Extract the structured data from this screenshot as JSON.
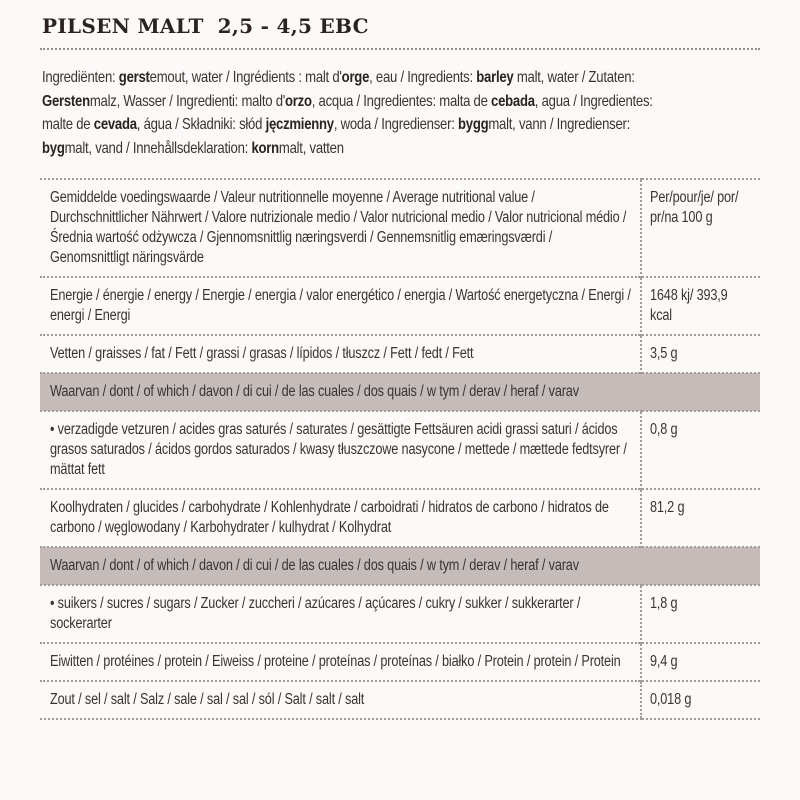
{
  "title": {
    "name": "PILSEN MALT",
    "ebc": "2,5 - 4,5 EBC"
  },
  "ingredients": [
    {
      "t": "Ingrediënten: ",
      "b": false
    },
    {
      "t": "gerst",
      "b": true
    },
    {
      "t": "emout, water / Ingrédients : malt d'",
      "b": false
    },
    {
      "t": "orge",
      "b": true
    },
    {
      "t": ", eau / Ingredients: ",
      "b": false
    },
    {
      "t": "barley",
      "b": true
    },
    {
      "t": " malt, water / Zutaten: ",
      "b": false
    },
    {
      "t": "Gersten",
      "b": true
    },
    {
      "t": "malz, Wasser / Ingredienti: malto d'",
      "b": false
    },
    {
      "t": "orzo",
      "b": true
    },
    {
      "t": ", acqua / Ingredientes: malta de ",
      "b": false
    },
    {
      "t": "cebada",
      "b": true
    },
    {
      "t": ", agua / Ingredientes: malte de ",
      "b": false
    },
    {
      "t": "cevada",
      "b": true
    },
    {
      "t": ", água / Składniki: słód ",
      "b": false
    },
    {
      "t": "jęczmienny",
      "b": true
    },
    {
      "t": ", woda / Ingredienser: ",
      "b": false
    },
    {
      "t": "bygg",
      "b": true
    },
    {
      "t": "malt, vann / Ingredienser: ",
      "b": false
    },
    {
      "t": "byg",
      "b": true
    },
    {
      "t": "malt, vand / Innehållsdeklaration: ",
      "b": false
    },
    {
      "t": "korn",
      "b": true
    },
    {
      "t": "malt, vatten",
      "b": false
    }
  ],
  "table": [
    {
      "label": "Gemiddelde voedingswaarde / Valeur nutritionnelle moyenne / Average nutritional value / Durchschnittlicher Nährwert / Valore nutrizionale medio / Valor nutricional medio / Valor nutricional médio / Średnia wartość odżywcza / Gjennomsnittlig næringsverdi / Gennemsnitlig emæringsværdi / Genomsnittligt näringsvärde",
      "value": "Per/pour/je/ por/ pr/na 100 g",
      "band": false
    },
    {
      "label": "Energie / énergie / energy / Energie / energia / valor energético / energia / Wartość energetyczna / Energi / energi / Energi",
      "value": "1648 kj/ 393,9 kcal",
      "band": false
    },
    {
      "label": "Vetten / graisses / fat / Fett / grassi / grasas / lípidos / tłuszcz / Fett / fedt / Fett",
      "value": "3,5 g",
      "band": false
    },
    {
      "label": "Waarvan / dont / of which / davon / di cui / de las cuales / dos quais / w tym / derav / heraf / varav",
      "value": "",
      "band": true
    },
    {
      "label": "• verzadigde vetzuren / acides gras saturés / saturates / gesättigte Fettsäuren  acidi grassi saturi / ácidos grasos saturados / ácidos gordos saturados / kwasy tłuszczowe nasycone / mettede / mættede fedtsyrer / mättat fett",
      "value": "0,8 g",
      "band": false
    },
    {
      "label": "Koolhydraten / glucides / carbohydrate / Kohlenhydrate / carboidrati / hidratos de carbono / hidratos de carbono / węglowodany / Karbohydrater / kulhydrat / Kolhydrat",
      "value": "81,2 g",
      "band": false
    },
    {
      "label": "Waarvan / dont / of which / davon / di cui / de las cuales / dos quais / w tym / derav / heraf / varav",
      "value": "",
      "band": true
    },
    {
      "label": "• suikers / sucres / sugars / Zucker / zuccheri / azúcares / açúcares / cukry / sukker / sukkerarter / sockerarter",
      "value": "1,8 g",
      "band": false
    },
    {
      "label": "Eiwitten / protéines / protein / Eiweiss / proteine / proteínas / proteínas / białko / Protein / protein / Protein",
      "value": "9,4 g",
      "band": false
    },
    {
      "label": "Zout / sel / salt / Salz / sale / sal / sal / sól / Salt / salt / salt",
      "value": "0,018 g",
      "band": false
    }
  ]
}
